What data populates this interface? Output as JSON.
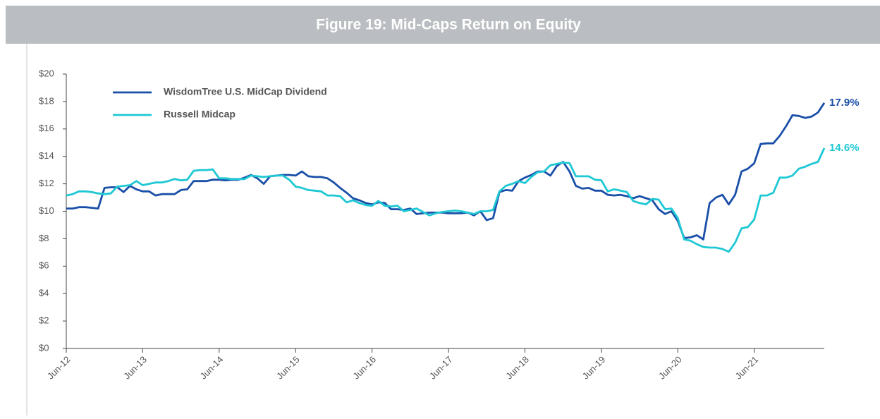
{
  "chart_data": {
    "type": "line",
    "title": "Figure 19: Mid-Caps Return on Equity",
    "categories": [
      "Jun-12",
      null,
      null,
      null,
      null,
      null,
      null,
      null,
      null,
      null,
      null,
      null,
      "Jun-13",
      null,
      null,
      null,
      null,
      null,
      null,
      null,
      null,
      null,
      null,
      null,
      "Jun-14",
      null,
      null,
      null,
      null,
      null,
      null,
      null,
      null,
      null,
      null,
      null,
      "Jun-15",
      null,
      null,
      null,
      null,
      null,
      null,
      null,
      null,
      null,
      null,
      null,
      "Jun-16",
      null,
      null,
      null,
      null,
      null,
      null,
      null,
      null,
      null,
      null,
      null,
      "Jun-17",
      null,
      null,
      null,
      null,
      null,
      null,
      null,
      null,
      null,
      null,
      null,
      "Jun-18",
      null,
      null,
      null,
      null,
      null,
      null,
      null,
      null,
      null,
      null,
      null,
      "Jun-19",
      null,
      null,
      null,
      null,
      null,
      null,
      null,
      null,
      null,
      null,
      null,
      "Jun-20",
      null,
      null,
      null,
      null,
      null,
      null,
      null,
      null,
      null,
      null,
      null,
      "Jun-21",
      null,
      null,
      null,
      null,
      null,
      null,
      null,
      null,
      null,
      null,
      null
    ],
    "series": [
      {
        "name": "WisdomTree U.S. MidCap Dividend",
        "color": "#1a4fa8",
        "end_label": "17.9%",
        "values": [
          10.2,
          10.2,
          10.3,
          10.3,
          10.25,
          10.2,
          11.7,
          11.75,
          11.75,
          11.4,
          11.85,
          11.6,
          11.45,
          11.45,
          11.15,
          11.25,
          11.25,
          11.25,
          11.55,
          11.6,
          12.2,
          12.2,
          12.2,
          12.3,
          12.3,
          12.25,
          12.3,
          12.3,
          12.45,
          12.65,
          12.4,
          12.0,
          12.55,
          12.6,
          12.65,
          12.65,
          12.6,
          12.9,
          12.55,
          12.5,
          12.5,
          12.4,
          12.1,
          11.7,
          11.35,
          10.95,
          10.8,
          10.6,
          10.5,
          10.65,
          10.6,
          10.15,
          10.15,
          10.1,
          10.2,
          9.8,
          9.85,
          9.9,
          9.9,
          9.9,
          9.85,
          9.85,
          9.85,
          9.9,
          9.7,
          10.0,
          9.35,
          9.5,
          11.4,
          11.55,
          11.5,
          12.2,
          12.45,
          12.65,
          12.9,
          12.9,
          12.6,
          13.3,
          13.6,
          12.9,
          11.85,
          11.65,
          11.7,
          11.5,
          11.5,
          11.2,
          11.15,
          11.2,
          11.1,
          10.95,
          11.1,
          10.95,
          10.8,
          10.15,
          9.8,
          10.0,
          9.3,
          8.05,
          8.1,
          8.25,
          7.95,
          10.6,
          11.0,
          11.2,
          10.5,
          11.2,
          12.9,
          13.1,
          13.5,
          14.9,
          14.95,
          14.95,
          15.5,
          16.2,
          17.0,
          16.95,
          16.8,
          16.9,
          17.2,
          17.9
        ]
      },
      {
        "name": "Russell Midcap",
        "color": "#1ec8d4",
        "end_label": "14.6%",
        "values": [
          11.15,
          11.25,
          11.45,
          11.45,
          11.4,
          11.3,
          11.25,
          11.3,
          11.8,
          11.85,
          11.9,
          12.2,
          11.9,
          12.0,
          12.1,
          12.1,
          12.2,
          12.35,
          12.25,
          12.3,
          12.95,
          13.0,
          13.0,
          13.05,
          12.4,
          12.4,
          12.35,
          12.35,
          12.35,
          12.6,
          12.55,
          12.5,
          12.55,
          12.6,
          12.6,
          12.3,
          11.8,
          11.7,
          11.55,
          11.5,
          11.45,
          11.15,
          11.15,
          11.1,
          10.65,
          10.8,
          10.6,
          10.45,
          10.4,
          10.75,
          10.4,
          10.35,
          10.4,
          10.0,
          10.1,
          10.2,
          9.95,
          9.7,
          9.85,
          9.95,
          10.0,
          10.05,
          10.0,
          9.9,
          9.8,
          10.0,
          10.0,
          10.1,
          11.45,
          11.85,
          12.0,
          12.2,
          12.05,
          12.5,
          12.85,
          12.9,
          13.35,
          13.45,
          13.55,
          13.5,
          12.55,
          12.55,
          12.55,
          12.3,
          12.25,
          11.45,
          11.6,
          11.5,
          11.4,
          10.75,
          10.6,
          10.5,
          10.9,
          10.85,
          10.15,
          10.2,
          9.5,
          7.95,
          7.85,
          7.6,
          7.4,
          7.35,
          7.35,
          7.25,
          7.05,
          7.7,
          8.75,
          8.85,
          9.4,
          11.15,
          11.15,
          11.35,
          12.45,
          12.45,
          12.6,
          13.1,
          13.25,
          13.45,
          13.6,
          14.6
        ]
      }
    ],
    "ylim": [
      0,
      20
    ],
    "yticks": [
      {
        "value": 0,
        "label": "$0"
      },
      {
        "value": 2,
        "label": "$2"
      },
      {
        "value": 4,
        "label": "$4"
      },
      {
        "value": 6,
        "label": "$6"
      },
      {
        "value": 8,
        "label": "$8"
      },
      {
        "value": 10,
        "label": "$10"
      },
      {
        "value": 12,
        "label": "$12"
      },
      {
        "value": 14,
        "label": "$14"
      },
      {
        "value": 16,
        "label": "$16"
      },
      {
        "value": 18,
        "label": "$18"
      },
      {
        "value": 20,
        "label": "$20"
      }
    ],
    "grid": false,
    "legend": "upper left"
  }
}
